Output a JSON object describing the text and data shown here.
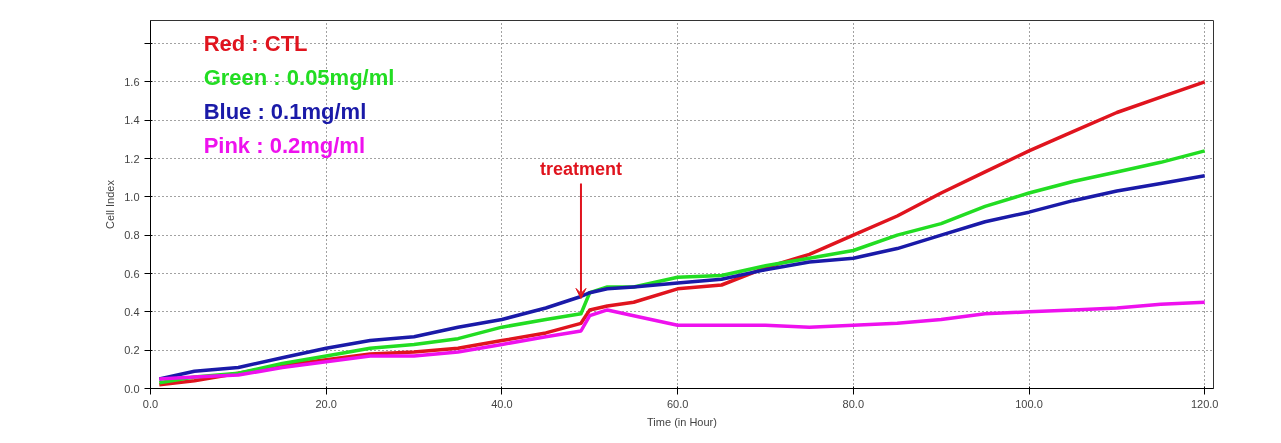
{
  "chart_data": {
    "type": "line",
    "xlabel": "Time (in Hour)",
    "ylabel": "Cell Index",
    "xlim": [
      0,
      121
    ],
    "ylim": [
      0,
      1.92
    ],
    "xticks": [
      {
        "value": 0,
        "label": "0.0"
      },
      {
        "value": 20,
        "label": "20.0"
      },
      {
        "value": 40,
        "label": "40.0"
      },
      {
        "value": 60,
        "label": "60.0"
      },
      {
        "value": 80,
        "label": "80.0"
      },
      {
        "value": 100,
        "label": "100.0"
      },
      {
        "value": 120,
        "label": "120.0"
      }
    ],
    "yticks": [
      {
        "value": 0,
        "label": "0.0"
      },
      {
        "value": 0.2,
        "label": "0.2"
      },
      {
        "value": 0.4,
        "label": "0.4"
      },
      {
        "value": 0.6,
        "label": "0.6"
      },
      {
        "value": 0.8,
        "label": "0.8"
      },
      {
        "value": 1.0,
        "label": "1.0"
      },
      {
        "value": 1.2,
        "label": "1.2"
      },
      {
        "value": 1.4,
        "label": "1.4"
      },
      {
        "value": 1.6,
        "label": "1.6"
      },
      {
        "value": 1.8,
        "label": null
      }
    ],
    "grid": true,
    "legend": "top left",
    "marker": "none",
    "line_style": "solid",
    "x": [
      1,
      5,
      10,
      15,
      20,
      25,
      30,
      35,
      40,
      45,
      49,
      50,
      52,
      55,
      60,
      65,
      70,
      75,
      80,
      85,
      90,
      95,
      100,
      105,
      110,
      115,
      120
    ],
    "series": [
      {
        "name": "Red : CTL",
        "color": "#e0141e",
        "values": [
          0.02,
          0.04,
          0.08,
          0.12,
          0.15,
          0.18,
          0.19,
          0.21,
          0.25,
          0.29,
          0.34,
          0.41,
          0.43,
          0.45,
          0.52,
          0.54,
          0.63,
          0.7,
          0.8,
          0.9,
          1.02,
          1.13,
          1.24,
          1.34,
          1.44,
          1.52,
          1.6
        ]
      },
      {
        "name": "Green : 0.05mg/ml",
        "color": "#22dd22",
        "values": [
          0.03,
          0.06,
          0.08,
          0.13,
          0.17,
          0.21,
          0.23,
          0.26,
          0.32,
          0.36,
          0.39,
          0.5,
          0.53,
          0.53,
          0.58,
          0.59,
          0.64,
          0.68,
          0.72,
          0.8,
          0.86,
          0.95,
          1.02,
          1.08,
          1.13,
          1.18,
          1.24
        ]
      },
      {
        "name": "Blue : 0.1mg/ml",
        "color": "#1a1aa8",
        "values": [
          0.05,
          0.09,
          0.11,
          0.16,
          0.21,
          0.25,
          0.27,
          0.32,
          0.36,
          0.42,
          0.48,
          0.5,
          0.52,
          0.53,
          0.55,
          0.57,
          0.62,
          0.66,
          0.68,
          0.73,
          0.8,
          0.87,
          0.92,
          0.98,
          1.03,
          1.07,
          1.11
        ]
      },
      {
        "name": "Pink : 0.2mg/ml",
        "color": "#ee11ee",
        "values": [
          0.05,
          0.06,
          0.07,
          0.11,
          0.14,
          0.17,
          0.17,
          0.19,
          0.23,
          0.27,
          0.3,
          0.38,
          0.41,
          0.38,
          0.33,
          0.33,
          0.33,
          0.32,
          0.33,
          0.34,
          0.36,
          0.39,
          0.4,
          0.41,
          0.42,
          0.44,
          0.45
        ]
      }
    ],
    "annotations": [
      {
        "text": "treatment",
        "x": 49,
        "y": 0.47
      }
    ]
  }
}
